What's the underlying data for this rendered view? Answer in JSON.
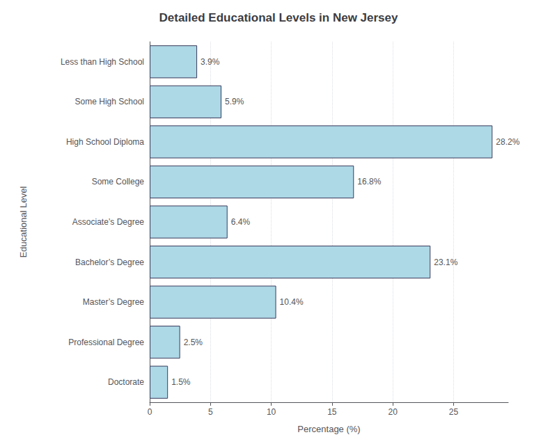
{
  "chart_data": {
    "type": "bar",
    "orientation": "horizontal",
    "title": "Detailed Educational Levels in New Jersey",
    "categories": [
      "Less than High School",
      "Some High School",
      "High School Diploma",
      "Some College",
      "Associate’s Degree",
      "Bachelor’s Degree",
      "Master’s Degree",
      "Professional Degree",
      "Doctorate"
    ],
    "values": [
      3.9,
      5.9,
      28.2,
      16.8,
      6.4,
      23.1,
      10.4,
      2.5,
      1.5
    ],
    "value_labels": [
      "3.9%",
      "5.9%",
      "28.2%",
      "16.8%",
      "6.4%",
      "23.1%",
      "10.4%",
      "2.5%",
      "1.5%"
    ],
    "data_labels": true,
    "color": "#add8e6",
    "xlabel": "Percentage (%)",
    "ylabel": "Educational Level",
    "xlim": [
      0,
      29.5
    ],
    "xticks": [
      0,
      5,
      10,
      15,
      20,
      25
    ],
    "grid": true
  }
}
